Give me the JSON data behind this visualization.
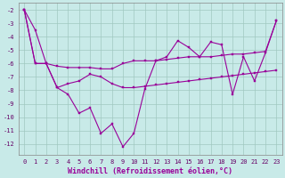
{
  "xlabel": "Windchill (Refroidissement éolien,°C)",
  "ylabel": "",
  "background_color": "#c8eae8",
  "grid_color": "#a0c8c0",
  "line_color": "#990099",
  "x": [
    0,
    1,
    2,
    3,
    4,
    5,
    6,
    7,
    8,
    9,
    10,
    11,
    12,
    13,
    14,
    15,
    16,
    17,
    18,
    19,
    20,
    21,
    22,
    23
  ],
  "line1": [
    -2,
    -3.5,
    -6,
    -7.8,
    -8.3,
    -9.7,
    -9.3,
    -11.2,
    -10.5,
    -12.2,
    -11.2,
    -7.9,
    -5.8,
    -5.5,
    -4.3,
    -4.8,
    -5.5,
    -4.4,
    -4.6,
    -8.3,
    -5.5,
    -7.3,
    -5.2,
    -2.8
  ],
  "line2": [
    -2.0,
    -6.0,
    -6.0,
    -7.8,
    -7.5,
    -7.3,
    -6.8,
    -7.0,
    -7.5,
    -7.8,
    -7.8,
    -7.7,
    -7.6,
    -7.5,
    -7.4,
    -7.3,
    -7.2,
    -7.1,
    -7.0,
    -6.9,
    -6.8,
    -6.7,
    -6.6,
    -6.5
  ],
  "line3": [
    -2.0,
    -6.0,
    -6.0,
    -6.2,
    -6.3,
    -6.3,
    -6.3,
    -6.4,
    -6.4,
    -6.0,
    -5.8,
    -5.8,
    -5.8,
    -5.7,
    -5.6,
    -5.5,
    -5.5,
    -5.5,
    -5.4,
    -5.3,
    -5.3,
    -5.2,
    -5.1,
    -2.8
  ],
  "ylim": [
    -12.8,
    -1.5
  ],
  "xlim": [
    -0.5,
    23.5
  ],
  "yticks": [
    -2,
    -3,
    -4,
    -5,
    -6,
    -7,
    -8,
    -9,
    -10,
    -11,
    -12
  ],
  "xticks": [
    0,
    1,
    2,
    3,
    4,
    5,
    6,
    7,
    8,
    9,
    10,
    11,
    12,
    13,
    14,
    15,
    16,
    17,
    18,
    19,
    20,
    21,
    22,
    23
  ],
  "xtick_labels": [
    "0",
    "1",
    "2",
    "3",
    "4",
    "5",
    "6",
    "7",
    "8",
    "9",
    "10",
    "11",
    "12",
    "13",
    "14",
    "15",
    "16",
    "17",
    "18",
    "19",
    "20",
    "21",
    "22",
    "23"
  ],
  "tick_fontsize": 5,
  "axis_fontsize": 6
}
